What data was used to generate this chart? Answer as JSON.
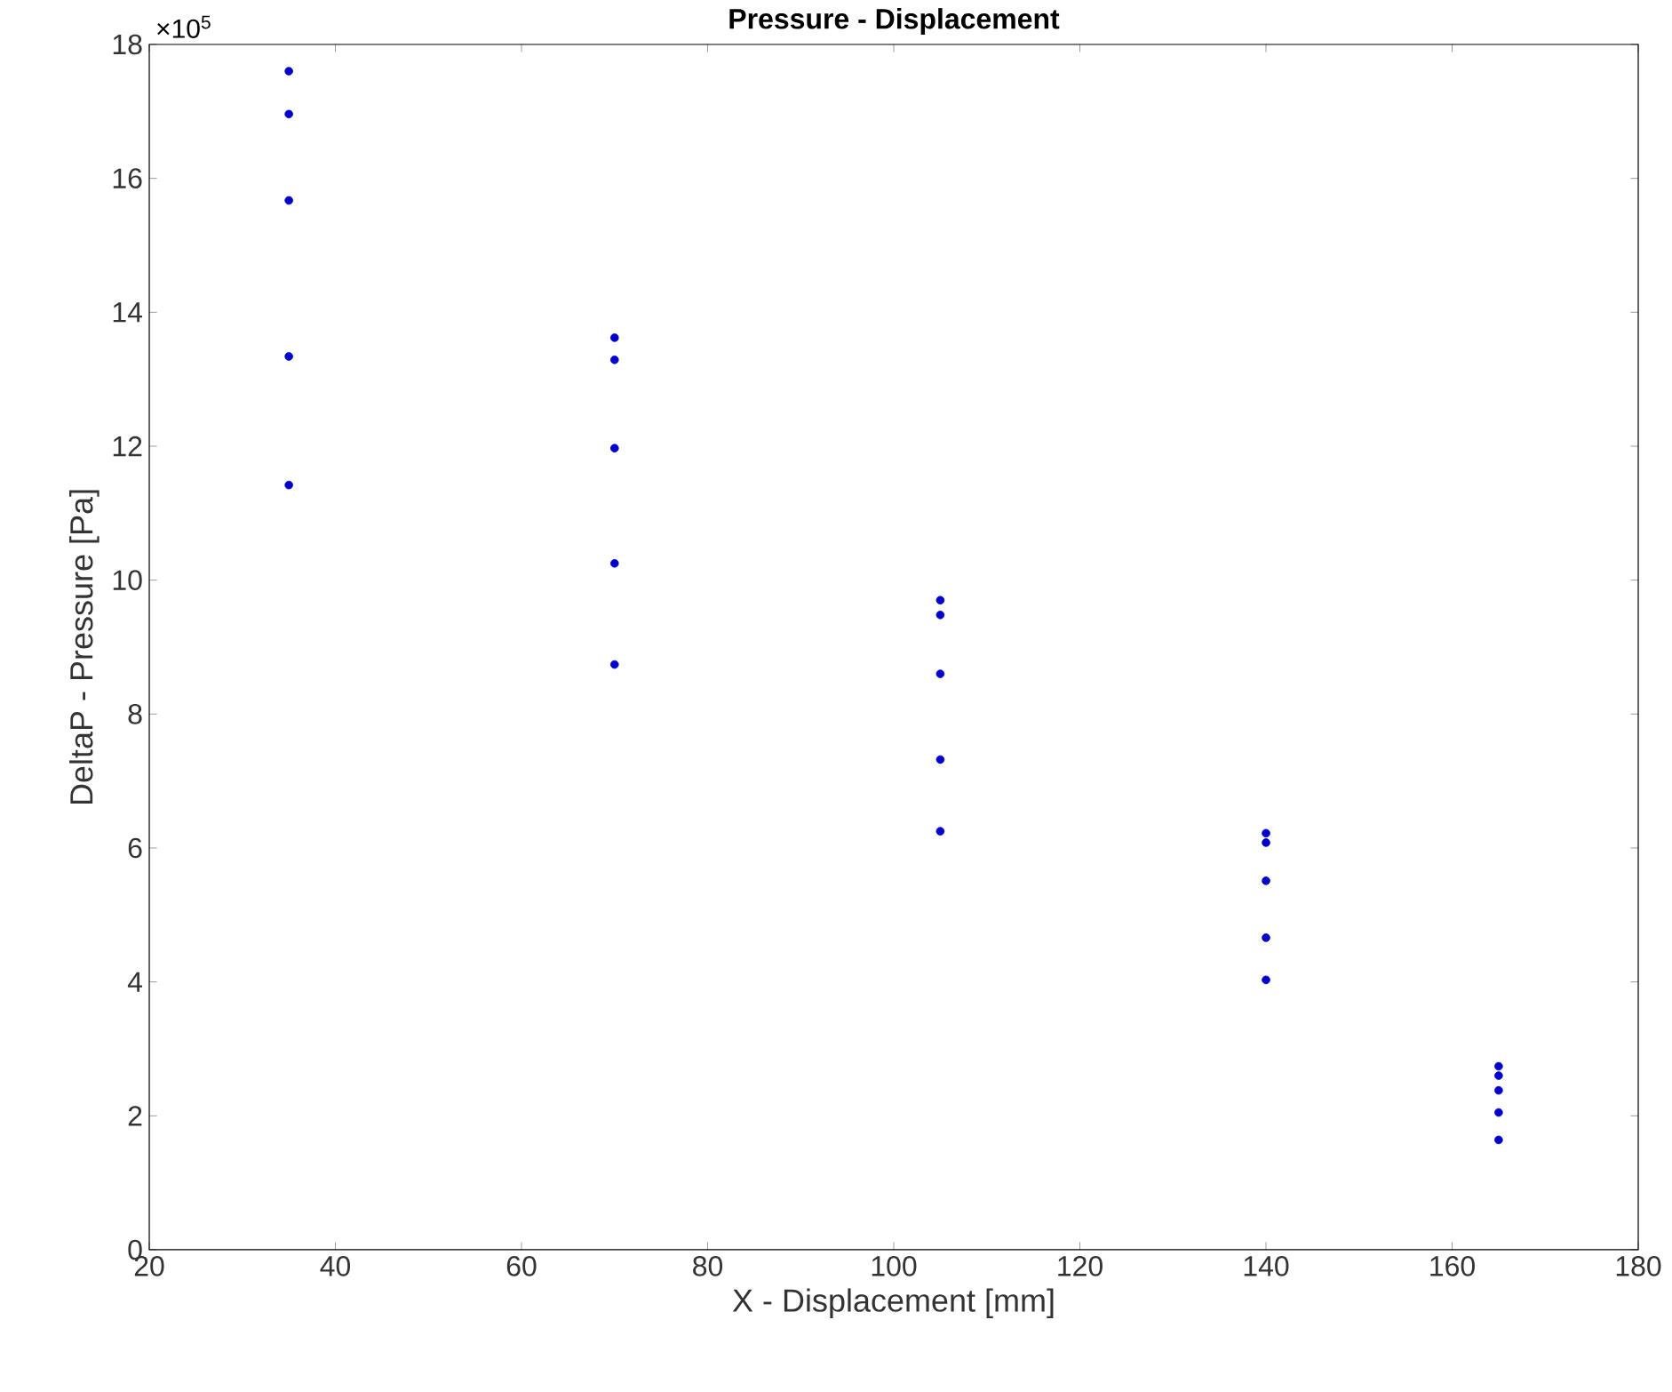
{
  "chart_data": {
    "type": "scatter",
    "title": "Pressure - Displacement",
    "xlabel": "X - Displacement [mm]",
    "ylabel": "DeltaP - Pressure [Pa]",
    "annotations": [
      "×10$^{5}$"
    ],
    "x": [
      35,
      35,
      35,
      35,
      35,
      70,
      70,
      70,
      70,
      70,
      105,
      105,
      105,
      105,
      105,
      140,
      140,
      140,
      140,
      140,
      165,
      165,
      165,
      165,
      165
    ],
    "values": [
      17.6,
      16.96,
      15.67,
      13.34,
      11.42,
      13.62,
      13.29,
      11.97,
      10.25,
      8.74,
      9.7,
      9.48,
      8.6,
      7.32,
      6.25,
      6.22,
      6.08,
      5.51,
      4.66,
      4.03,
      2.74,
      2.6,
      2.38,
      2.05,
      1.64
    ],
    "color": "#0000cc",
    "marker": "circle",
    "grid": false,
    "xlim": [
      20,
      180
    ],
    "xticks": [
      20,
      40,
      60,
      80,
      100,
      120,
      140,
      160,
      180
    ],
    "ylim": [
      0,
      18
    ],
    "yticks": [
      0,
      2,
      4,
      6,
      8,
      10,
      12,
      14,
      16,
      18
    ]
  }
}
